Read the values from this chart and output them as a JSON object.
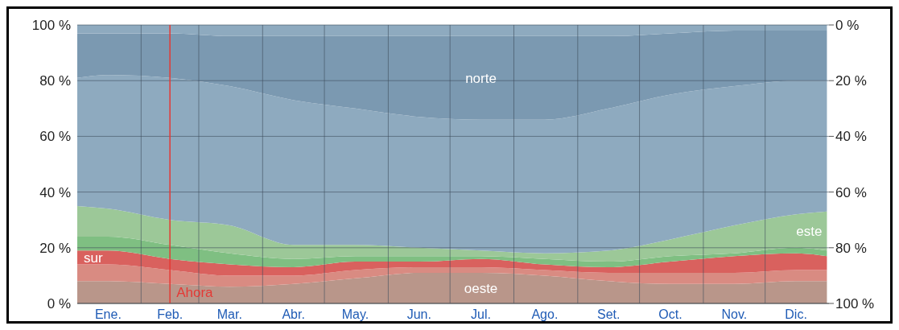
{
  "chart_data": {
    "type": "area",
    "stacked": true,
    "x": [
      "--01-01",
      "--01-16",
      "--02-15",
      "--03-16",
      "--04-16",
      "--05-16",
      "--06-16",
      "--07-16",
      "--08-16",
      "--09-16",
      "--10-16",
      "--11-16",
      "--12-16",
      "--12-31"
    ],
    "series": [
      {
        "name": "oeste",
        "color": "#b9968a",
        "values": [
          8,
          8,
          7,
          6,
          7,
          9,
          11,
          11,
          10,
          8,
          7,
          7,
          8,
          8
        ]
      },
      {
        "color": "#d98b82",
        "values": [
          6,
          6,
          5,
          4,
          3,
          3,
          2,
          2,
          2,
          3,
          4,
          4,
          4,
          4
        ]
      },
      {
        "name": "sur",
        "color": "#d9615e",
        "values": [
          5,
          5,
          4,
          4,
          3,
          3,
          2,
          3,
          2,
          2,
          4,
          6,
          6,
          5
        ]
      },
      {
        "color": "#7fbf82",
        "values": [
          5,
          5,
          5,
          4,
          3,
          2,
          2,
          1,
          2,
          2,
          2,
          1,
          2,
          2
        ]
      },
      {
        "name": "este",
        "color": "#9cc898",
        "values": [
          11,
          10,
          9,
          10,
          5,
          4,
          3,
          2,
          2,
          4,
          6,
          10,
          12,
          14
        ]
      },
      {
        "color": "#8eaabf",
        "values": [
          46,
          48,
          51,
          50,
          52,
          49,
          47,
          47,
          48,
          51,
          52,
          50,
          48,
          47
        ]
      },
      {
        "name": "norte",
        "color": "#7b99b1",
        "values": [
          16,
          15,
          16,
          18,
          23,
          26,
          29,
          30,
          30,
          26,
          22,
          20,
          18,
          18
        ]
      },
      {
        "color": "#8eaabf",
        "values": [
          3,
          3,
          3,
          4,
          4,
          4,
          4,
          4,
          4,
          4,
          3,
          2,
          2,
          2
        ]
      }
    ],
    "xlim": [
      "--01-01",
      "--12-31"
    ],
    "xticks": [
      {
        "value": "--01-16",
        "label": "Ene."
      },
      {
        "value": "--02-01",
        "label": null
      },
      {
        "value": "--02-15",
        "label": "Feb."
      },
      {
        "value": "--03-01",
        "label": null
      },
      {
        "value": "--03-16",
        "label": "Mar."
      },
      {
        "value": "--04-01",
        "label": null
      },
      {
        "value": "--04-16",
        "label": "Abr."
      },
      {
        "value": "--05-01",
        "label": null
      },
      {
        "value": "--05-16",
        "label": "May."
      },
      {
        "value": "--06-01",
        "label": null
      },
      {
        "value": "--06-16",
        "label": "Jun."
      },
      {
        "value": "--07-01",
        "label": null
      },
      {
        "value": "--07-16",
        "label": "Jul."
      },
      {
        "value": "--08-01",
        "label": null
      },
      {
        "value": "--08-16",
        "label": "Ago."
      },
      {
        "value": "--09-01",
        "label": null
      },
      {
        "value": "--09-16",
        "label": "Set."
      },
      {
        "value": "--10-01",
        "label": null
      },
      {
        "value": "--10-16",
        "label": "Oct."
      },
      {
        "value": "--11-01",
        "label": null
      },
      {
        "value": "--11-16",
        "label": "Nov."
      },
      {
        "value": "--12-01",
        "label": null
      },
      {
        "value": "--12-16",
        "label": "Dic."
      }
    ],
    "ylim": [
      0,
      100
    ],
    "yticks": [
      {
        "value": 0,
        "label": "0 %"
      },
      {
        "value": 20,
        "label": "20 %"
      },
      {
        "value": 40,
        "label": "40 %"
      },
      {
        "value": 60,
        "label": "60 %"
      },
      {
        "value": 80,
        "label": "80 %"
      },
      {
        "value": 100,
        "label": "100 %"
      }
    ],
    "y2lim": [
      100,
      0
    ],
    "y2ticks": [
      {
        "value": 0,
        "label": "0 %"
      },
      {
        "value": 20,
        "label": "20 %"
      },
      {
        "value": 40,
        "label": "40 %"
      },
      {
        "value": 60,
        "label": "60 %"
      },
      {
        "value": 80,
        "label": "80 %"
      },
      {
        "value": 100,
        "label": "100 %"
      }
    ],
    "grid": true,
    "ref_lines": [
      {
        "axis": "x",
        "value": "--02-15",
        "label": "Ahora",
        "color": "#e53935"
      }
    ]
  }
}
